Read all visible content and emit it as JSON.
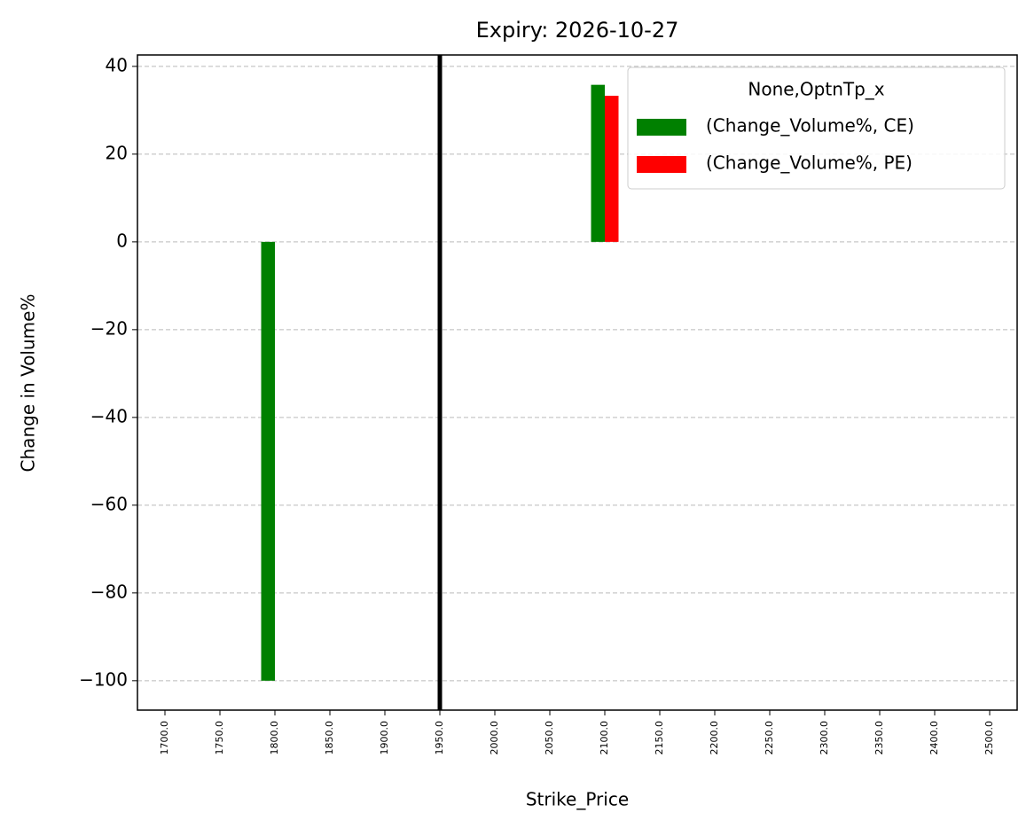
{
  "chart_data": {
    "type": "bar",
    "title": "Expiry: 2026-10-27",
    "x_label": "Strike_Price",
    "y_label": "Change in Volume%",
    "categories": [
      "1700.0",
      "1750.0",
      "1800.0",
      "1850.0",
      "1900.0",
      "1950.0",
      "2000.0",
      "2050.0",
      "2100.0",
      "2150.0",
      "2200.0",
      "2250.0",
      "2300.0",
      "2350.0",
      "2400.0",
      "2500.0"
    ],
    "series": [
      {
        "name": "(Change_Volume%, CE)",
        "color": "#008000",
        "values": [
          null,
          null,
          -100,
          null,
          null,
          null,
          null,
          null,
          35.8,
          null,
          null,
          null,
          null,
          null,
          null,
          null
        ]
      },
      {
        "name": "(Change_Volume%, PE)",
        "color": "#ff0000",
        "values": [
          null,
          null,
          null,
          null,
          null,
          null,
          null,
          null,
          33.3,
          null,
          null,
          null,
          null,
          null,
          null,
          null
        ]
      }
    ],
    "legend_title": "None,OptnTp_x",
    "legend": "upper right",
    "vline_at": 1950,
    "vline_color": "#000000",
    "ylim": [
      -106.7,
      42.6
    ],
    "yticks": [
      {
        "value": -100,
        "label": "−100"
      },
      {
        "value": -80,
        "label": "−80"
      },
      {
        "value": -60,
        "label": "−60"
      },
      {
        "value": -40,
        "label": "−40"
      },
      {
        "value": -20,
        "label": "−20"
      },
      0,
      20,
      40
    ],
    "grid": true
  }
}
